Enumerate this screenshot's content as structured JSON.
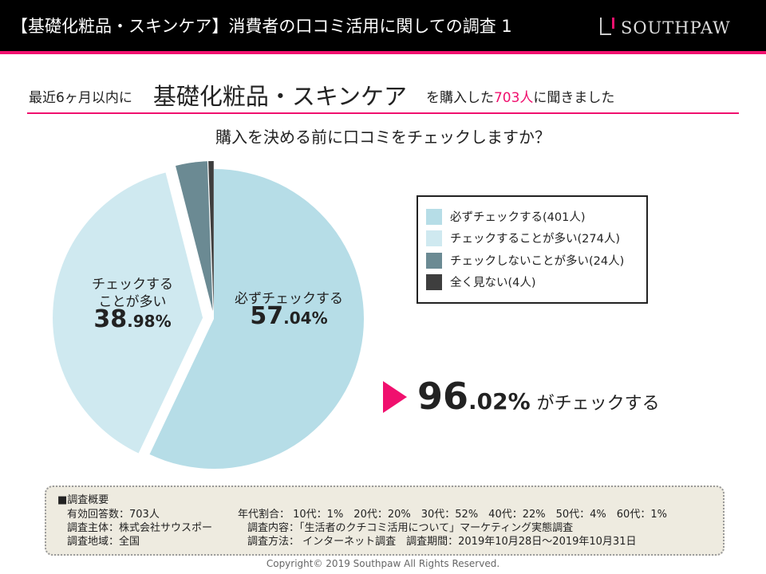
{
  "header": {
    "title": "【基礎化粧品・スキンケア】消費者の口コミ活用に関しての調査 1",
    "logo": "SOUTHPAW"
  },
  "subtitle": {
    "pre": "最近6ヶ月以内に",
    "category": "基礎化粧品・スキンケア",
    "mid": "を購入した",
    "count": "703人",
    "post": "に聞きました"
  },
  "question": "購入を決める前に口コミをチェックしますか？",
  "chart_data": {
    "type": "pie",
    "title": "購入を決める前に口コミをチェックしますか？",
    "total": 703,
    "slices": [
      {
        "name": "必ずチェックする",
        "count": 401,
        "percent": 57.04,
        "color": "#b6dde7",
        "label_line1": "必ずチェックする",
        "pct_int": "57",
        "pct_dec": ".04%",
        "legend": "必ずチェックする(401人)"
      },
      {
        "name": "チェックすることが多い",
        "count": 274,
        "percent": 38.98,
        "color": "#cfe9f0",
        "label_line1": "チェックする",
        "label_line2": "ことが多い",
        "pct_int": "38",
        "pct_dec": ".98%",
        "legend": "チェックすることが多い(274人)"
      },
      {
        "name": "チェックしないことが多い",
        "count": 24,
        "percent": 3.41,
        "color": "#6b8a93",
        "legend": "チェックしないことが多い(24人)"
      },
      {
        "name": "全く見ない",
        "count": 4,
        "percent": 0.57,
        "color": "#3e3e3e",
        "legend": "全く見ない(4人)"
      }
    ]
  },
  "highlight": {
    "int": "96",
    "dec": ".02%",
    "text": "がチェックする"
  },
  "summary": {
    "heading": "■調査概要",
    "responses": "有効回答数：703人",
    "ages": "年代割合： 10代：1%　20代：20%　30代：52%　40代：22%　50代：4%　60代：1%",
    "org": "調査主体：株式会社サウスポー",
    "content": "調査内容：「生活者のクチコミ活用について」マーケティング実態調査",
    "region": "調査地域：全国",
    "method": "調査方法： インターネット調査　調査期間：2019年10月28日〜2019年10月31日"
  },
  "copyright": "Copyright© 2019 Southpaw All Rights Reserved."
}
